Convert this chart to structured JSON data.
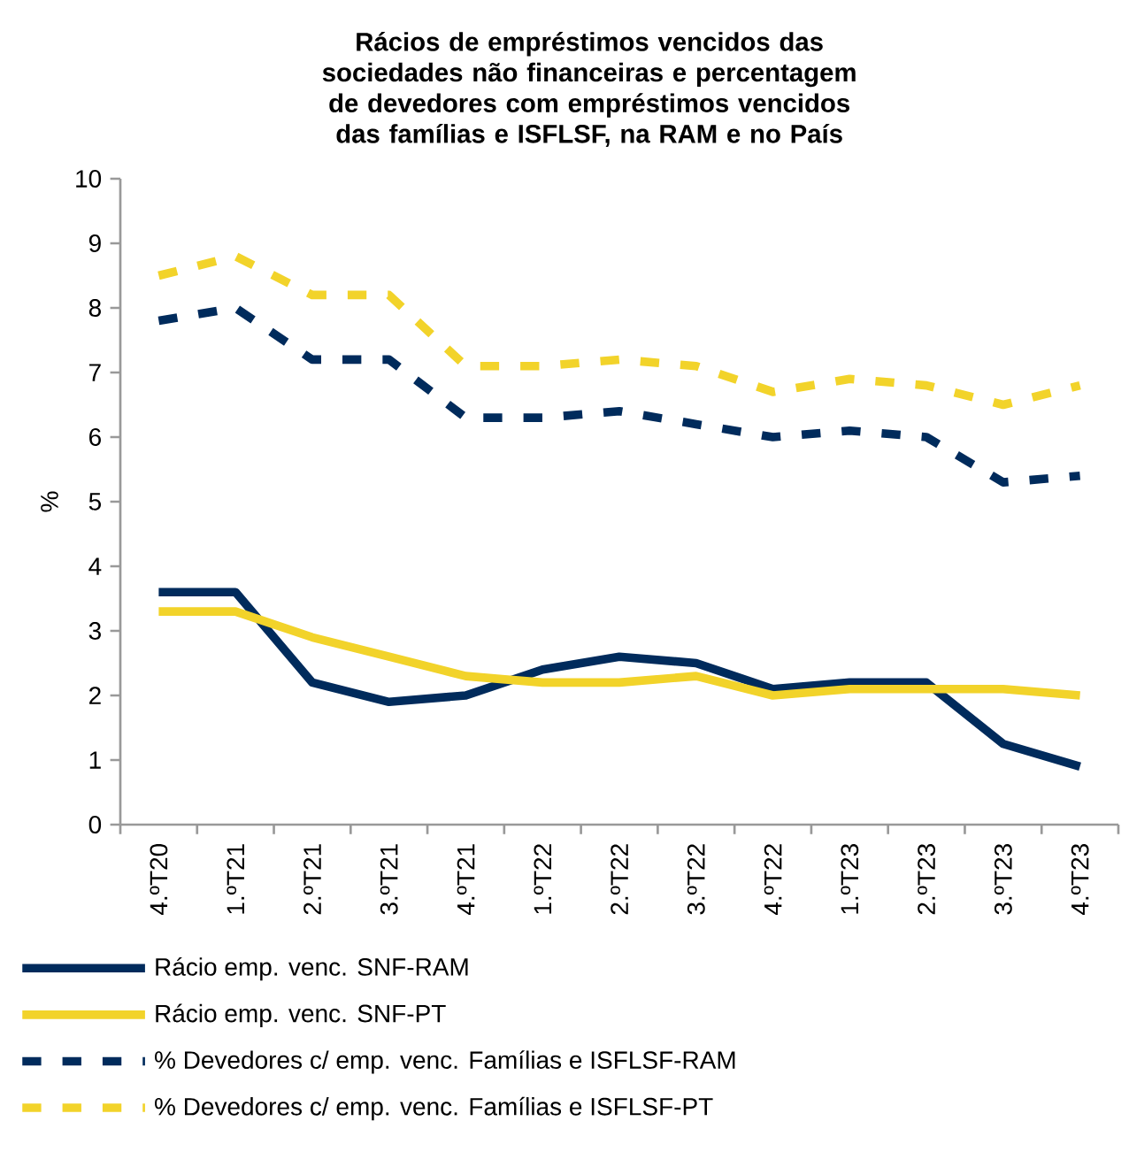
{
  "chart_data": {
    "type": "line",
    "title": "Rácios de empréstimos vencidos das sociedades não financeiras e percentagem de devedores com empréstimos vencidos das famílias e ISFLSF, na RAM e no País",
    "ylabel": "%",
    "categories": [
      "4.ºT20",
      "1.ºT21",
      "2.ºT21",
      "3.ºT21",
      "4.ºT21",
      "1.ºT22",
      "2.ºT22",
      "3.ºT22",
      "4.ºT22",
      "1.ºT23",
      "2.ºT23",
      "3.ºT23",
      "4.ºT23"
    ],
    "ylim": [
      0,
      10
    ],
    "yticks": [
      0,
      1,
      2,
      3,
      4,
      5,
      6,
      7,
      8,
      9,
      10
    ],
    "grid": false,
    "legend": "bottom",
    "series": [
      {
        "name": "Rácio emp. venc. SNF-RAM",
        "color": "#002b5c",
        "line_style": "solid",
        "values": [
          3.6,
          3.6,
          2.2,
          1.9,
          2.0,
          2.4,
          2.6,
          2.5,
          2.1,
          2.2,
          2.2,
          1.25,
          0.9
        ]
      },
      {
        "name": "Rácio emp. venc. SNF-PT",
        "color": "#f2d32a",
        "line_style": "solid",
        "values": [
          3.3,
          3.3,
          2.9,
          2.6,
          2.3,
          2.2,
          2.2,
          2.3,
          2.0,
          2.1,
          2.1,
          2.1,
          2.0
        ]
      },
      {
        "name": "% Devedores c/ emp. venc. Famílias e ISFLSF-RAM",
        "color": "#002b5c",
        "line_style": "dashed",
        "values": [
          7.8,
          8.0,
          7.2,
          7.2,
          6.3,
          6.3,
          6.4,
          6.2,
          6.0,
          6.1,
          6.0,
          5.3,
          5.4
        ]
      },
      {
        "name": "% Devedores c/ emp. venc. Famílias e ISFLSF-PT",
        "color": "#f2d32a",
        "line_style": "dashed",
        "values": [
          8.5,
          8.8,
          8.2,
          8.2,
          7.1,
          7.1,
          7.2,
          7.1,
          6.7,
          6.9,
          6.8,
          6.5,
          6.8
        ]
      }
    ]
  }
}
